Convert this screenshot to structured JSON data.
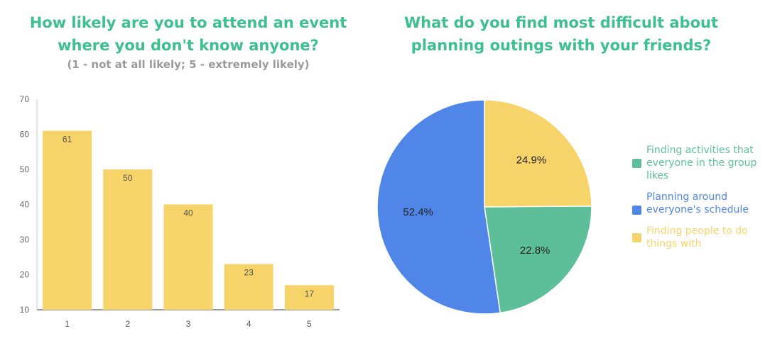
{
  "chart_data": [
    {
      "type": "bar",
      "title": "How likely are you to attend an event where you don't know anyone?",
      "subtitle": "(1 - not at all likely; 5 - extremely likely)",
      "categories": [
        "1",
        "2",
        "3",
        "4",
        "5"
      ],
      "values": [
        61,
        50,
        40,
        23,
        17
      ],
      "ylim": [
        10,
        70
      ],
      "yticks": [
        10,
        20,
        30,
        40,
        50,
        60,
        70
      ],
      "grid": false,
      "bar_color": "#f7d46a",
      "xlabel": "",
      "ylabel": ""
    },
    {
      "type": "pie",
      "title": "What do you find most difficult about planning outings with your friends?",
      "legend_position": "right",
      "slices": [
        {
          "label": "Finding people to do things with",
          "value": 24.9,
          "display": "24.9%",
          "color": "#f7d46a"
        },
        {
          "label": "Finding activities that everyone in the group likes",
          "value": 22.8,
          "display": "22.8%",
          "color": "#5dbf9a"
        },
        {
          "label": "Planning around everyone's schedule",
          "value": 52.4,
          "display": "52.4%",
          "color": "#4f86e8"
        }
      ]
    }
  ]
}
